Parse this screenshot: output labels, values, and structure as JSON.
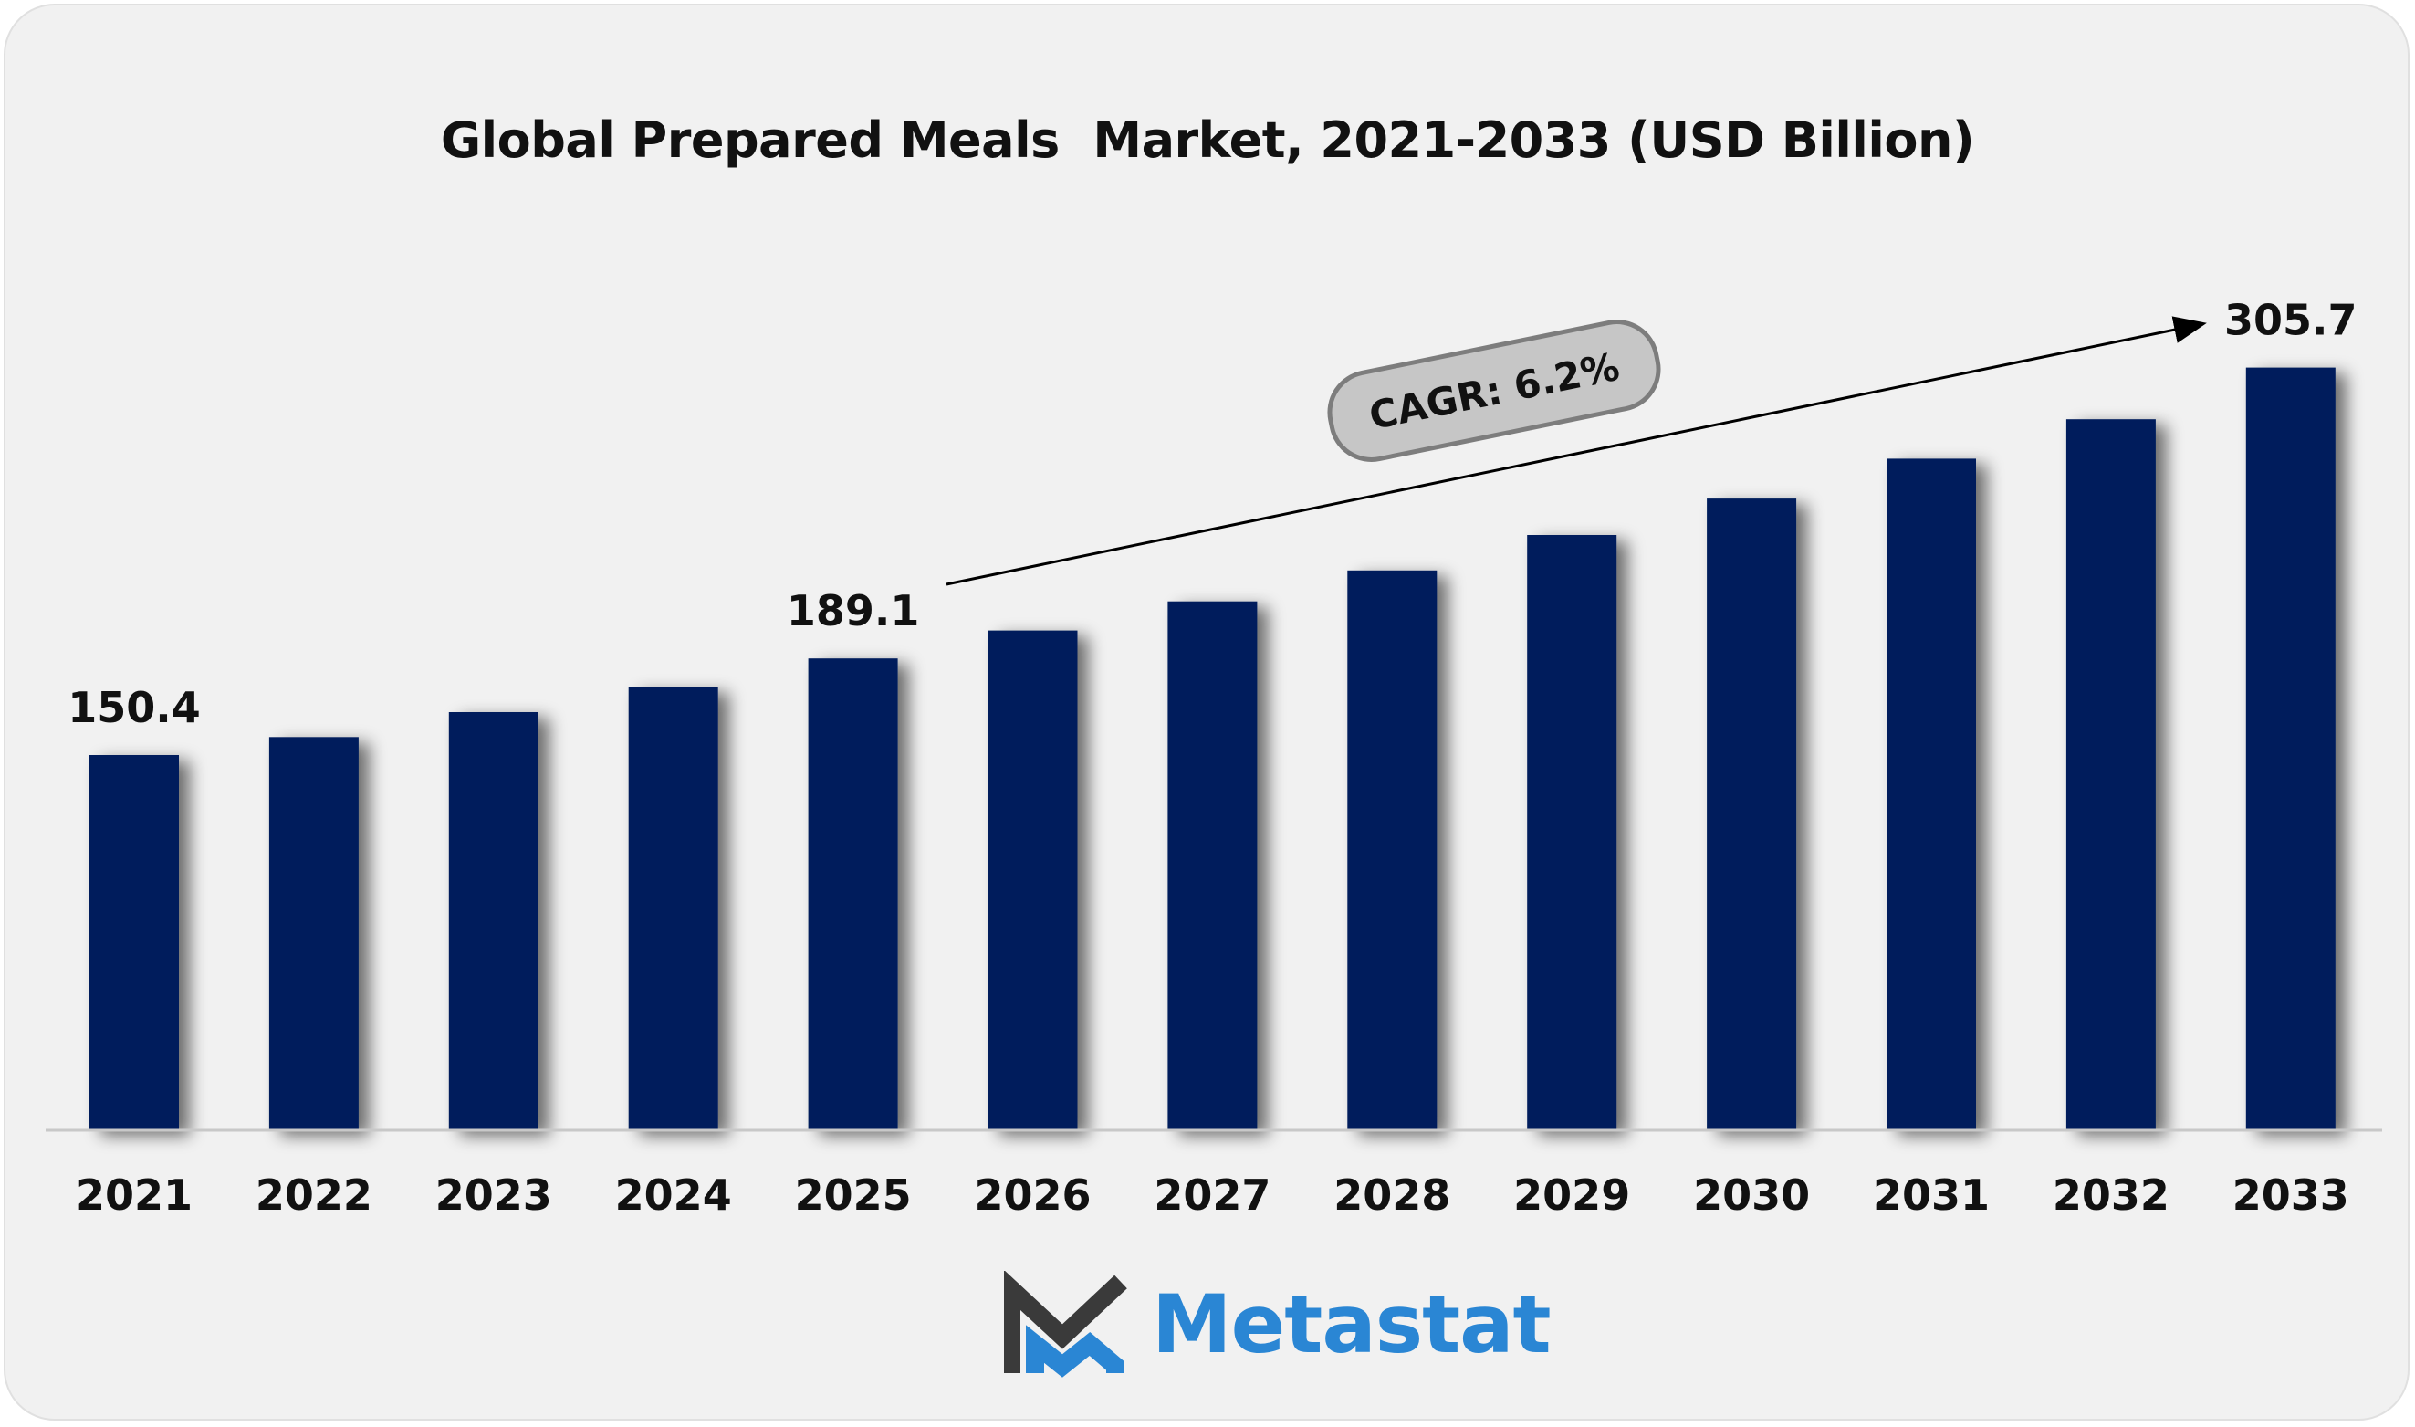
{
  "title": "Global Prepared Meals  Market, 2021-2033 (USD Billion)",
  "brand": {
    "name": "Metastat",
    "colors": {
      "dark": "#3a3a3a",
      "blue": "#2a86d4"
    }
  },
  "annotation": {
    "cagr_label": "CAGR: 6.2%"
  },
  "colors": {
    "bar": "#031f5b",
    "axis": "#c8c8c8",
    "background": "#f1f1f1"
  },
  "chart_data": {
    "type": "bar",
    "title": "Global Prepared Meals  Market, 2021-2033 (USD Billion)",
    "xlabel": "",
    "ylabel": "",
    "categories": [
      "2021",
      "2022",
      "2023",
      "2024",
      "2025",
      "2026",
      "2027",
      "2028",
      "2029",
      "2030",
      "2031",
      "2032",
      "2033"
    ],
    "values": [
      150.4,
      157.6,
      167.6,
      177.7,
      189.1,
      200.3,
      212.0,
      224.4,
      238.6,
      253.2,
      269.2,
      285.0,
      305.7
    ],
    "data_labels": [
      {
        "category": "2021",
        "text": "150.4"
      },
      {
        "category": "2025",
        "text": "189.1"
      },
      {
        "category": "2033",
        "text": "305.7"
      }
    ],
    "ylim": [
      0,
      340
    ],
    "grid": false,
    "legend": "none"
  }
}
